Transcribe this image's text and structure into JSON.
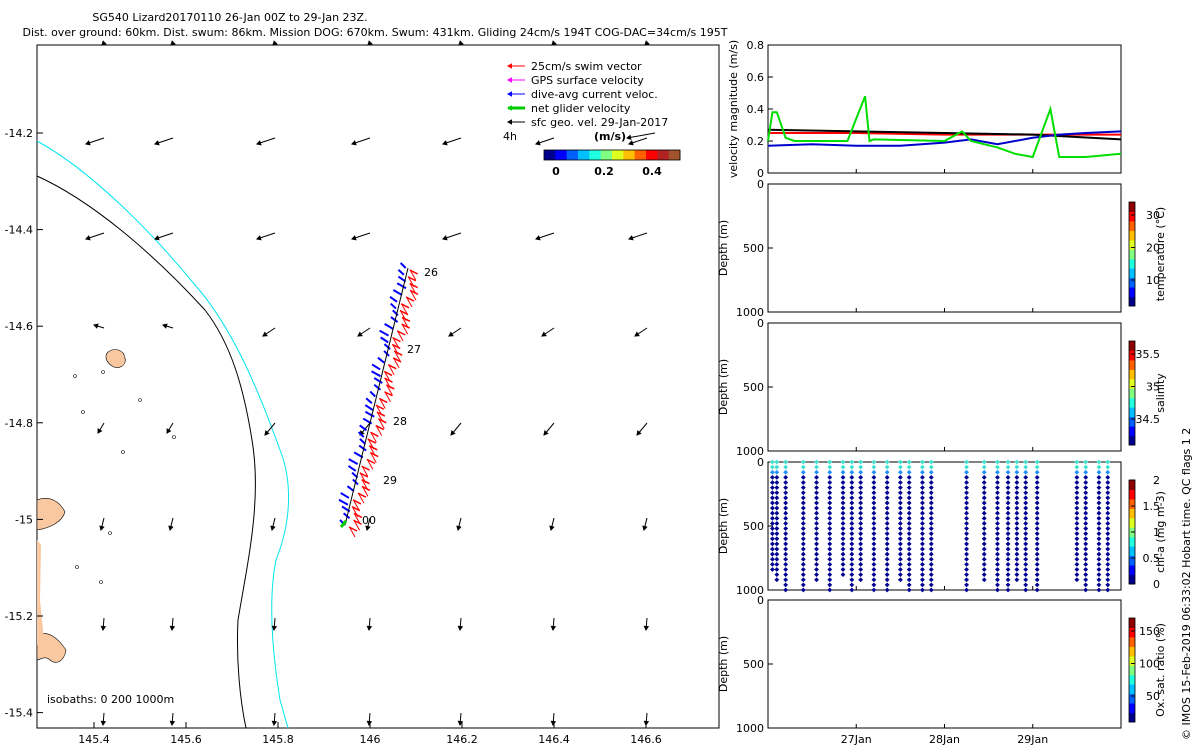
{
  "header": {
    "title": "SG540 Lizard20170110 26-Jan 00Z to 29-Jan 23Z.",
    "subtitle": "Dist. over ground: 60km. Dist. swum: 86km. Mission DOG: 670km. Swum: 431km. Gliding 24cm/s 194T COG-DAC=34cm/s 195T"
  },
  "side_note": "© IMOS 15-Feb-2019 06:33:02 Hobart time. QC flags 1  2",
  "map": {
    "x_ticks": [
      "145.4",
      "145.6",
      "145.8",
      "146",
      "146.2",
      "146.4",
      "146.6"
    ],
    "y_ticks": [
      "-14.2",
      "-14.4",
      "-14.6",
      "-14.8",
      "-15",
      "-15.2",
      "-15.4"
    ],
    "day_labels": [
      "26",
      "27",
      "28",
      "29",
      "00"
    ],
    "scale_label": "4h",
    "isobaths_label": "isobaths: 0   200  1000m",
    "legend": [
      {
        "label": "25cm/s swim vector",
        "color": "#ff0000"
      },
      {
        "label": "GPS surface velocity",
        "color": "#ff00ff"
      },
      {
        "label": "dive-avg current veloc.",
        "color": "#0000ff"
      },
      {
        "label": "net glider velocity",
        "color": "#00cc00"
      },
      {
        "label": "sfc geo. vel. 29-Jan-2017",
        "color": "#000000"
      }
    ],
    "colorbar": {
      "unit": "(m/s)",
      "ticks": [
        "0",
        "0.2",
        "0.4"
      ]
    }
  },
  "chart_data": [
    {
      "type": "line",
      "title": "",
      "ylabel": "velocity magnitude (m/s)",
      "ylim": [
        0,
        0.8
      ],
      "y_ticks": [
        "0",
        "0.2",
        "0.4",
        "0.6",
        "0.8"
      ],
      "x_range_days": [
        26.0,
        30.0
      ],
      "series": [
        {
          "name": "swim vector",
          "color": "#ff0000",
          "x": [
            26.0,
            27.0,
            28.0,
            29.0,
            30.0
          ],
          "y": [
            0.25,
            0.25,
            0.24,
            0.24,
            0.24
          ]
        },
        {
          "name": "net glider velocity",
          "color": "#000000",
          "x": [
            26.0,
            27.0,
            28.0,
            29.0,
            30.0
          ],
          "y": [
            0.27,
            0.26,
            0.25,
            0.24,
            0.21
          ]
        },
        {
          "name": "dive-avg current",
          "color": "#0000cc",
          "x": [
            26.0,
            26.5,
            27.0,
            27.5,
            28.0,
            28.3,
            28.6,
            29.0,
            29.3,
            29.6,
            30.0
          ],
          "y": [
            0.17,
            0.18,
            0.17,
            0.17,
            0.19,
            0.21,
            0.18,
            0.22,
            0.24,
            0.25,
            0.26
          ]
        },
        {
          "name": "GPS/green velocity",
          "color": "#00dd00",
          "x": [
            26.0,
            26.05,
            26.1,
            26.2,
            26.3,
            26.9,
            27.1,
            27.15,
            27.2,
            28.0,
            28.2,
            28.3,
            28.6,
            28.8,
            29.0,
            29.2,
            29.3,
            29.6,
            30.0
          ],
          "y": [
            0.2,
            0.38,
            0.38,
            0.22,
            0.2,
            0.2,
            0.48,
            0.2,
            0.21,
            0.2,
            0.26,
            0.2,
            0.16,
            0.12,
            0.1,
            0.4,
            0.1,
            0.1,
            0.12
          ]
        }
      ]
    },
    {
      "type": "scatter",
      "ylabel": "Depth (m)",
      "colorbar_label": "temperature (°C)",
      "ylim": [
        1000,
        0
      ],
      "y_ticks": [
        "0",
        "500",
        "1000"
      ],
      "colorbar_ticks": [
        "10",
        "20",
        "30"
      ]
    },
    {
      "type": "scatter",
      "ylabel": "Depth (m)",
      "colorbar_label": "salinity",
      "ylim": [
        1000,
        0
      ],
      "y_ticks": [
        "0",
        "500",
        "1000"
      ],
      "colorbar_ticks": [
        "34.5",
        "35",
        "35.5"
      ]
    },
    {
      "type": "scatter",
      "ylabel": "Depth (m)",
      "colorbar_label": "chl-a (mg m-3)",
      "ylim": [
        1000,
        0
      ],
      "y_ticks": [
        "0",
        "500",
        "1000"
      ],
      "colorbar_ticks": [
        "0",
        "0.5",
        "1",
        "1.5",
        "2"
      ],
      "profile_days": [
        26.05,
        26.1,
        26.2,
        26.4,
        26.55,
        26.7,
        26.85,
        26.95,
        27.05,
        27.2,
        27.35,
        27.5,
        27.6,
        27.75,
        27.85,
        28.25,
        28.45,
        28.6,
        28.72,
        28.82,
        28.92,
        29.05,
        29.5,
        29.6,
        29.75,
        29.85
      ],
      "profile_depths_m": [
        850,
        950,
        1000,
        1000,
        950,
        1000,
        900,
        1000,
        950,
        1000,
        1000,
        950,
        1000,
        1000,
        1000,
        1000,
        950,
        1000,
        1000,
        950,
        1000,
        1000,
        950,
        1000,
        1000,
        1000
      ]
    },
    {
      "type": "scatter",
      "ylabel": "Depth (m)",
      "colorbar_label": "Ox. sat. ratio (%)",
      "ylim": [
        1000,
        0
      ],
      "y_ticks": [
        "0",
        "500",
        "1000"
      ],
      "colorbar_ticks": [
        "50",
        "100",
        "150"
      ],
      "x_ticks": [
        "27Jan",
        "28Jan",
        "29Jan"
      ]
    }
  ]
}
